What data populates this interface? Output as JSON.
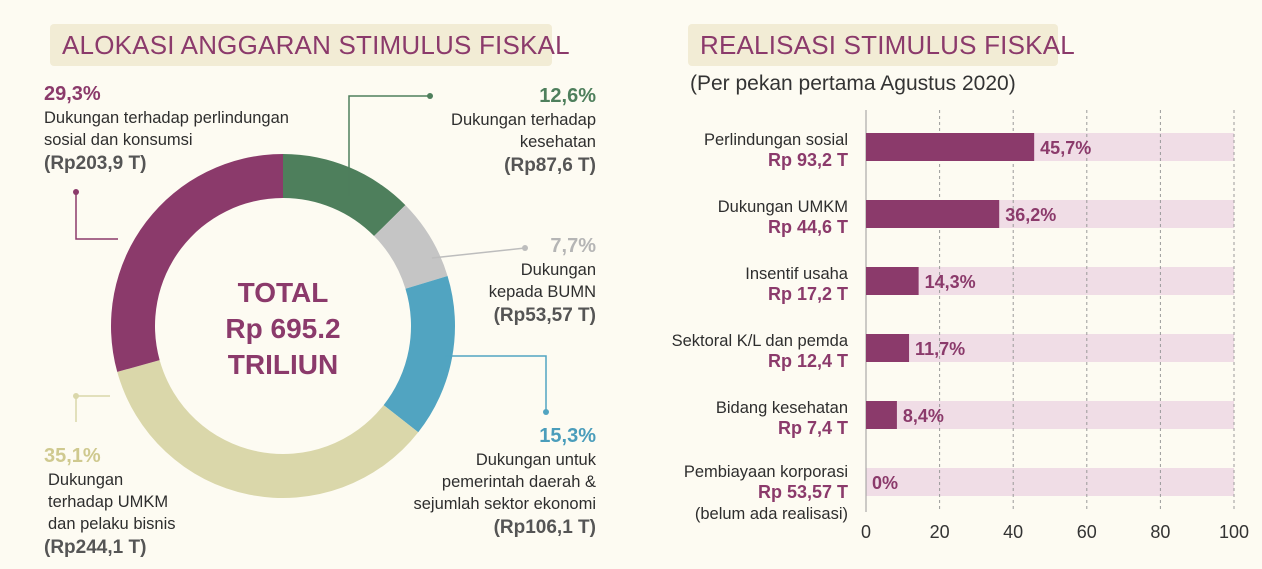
{
  "left_title": "ALOKASI ANGGARAN STIMULUS FISKAL",
  "right_title": "REALISASI STIMULUS FISKAL",
  "right_subtitle": "(Per pekan pertama Agustus 2020)",
  "center": {
    "line1": "TOTAL",
    "line2": "Rp 695.2",
    "line3": "TRILIUN"
  },
  "colors": {
    "accent": "#8b3a6b",
    "title_bg": "#f2ecd5",
    "bg": "#fdfbf2",
    "bar_bg": "#f0dde6"
  },
  "chart_data": [
    {
      "type": "pie",
      "title": "ALOKASI ANGGARAN STIMULUS FISKAL",
      "total_label": "TOTAL Rp 695.2 TRILIUN",
      "slices": [
        {
          "pct_label": "12,6%",
          "value": 12.6,
          "desc": [
            "Dukungan terhadap",
            "kesehatan"
          ],
          "amount": "(Rp87,6 T)",
          "color": "#4e7f5c"
        },
        {
          "pct_label": "7,7%",
          "value": 7.7,
          "desc": [
            "Dukungan",
            "kepada BUMN"
          ],
          "amount": "(Rp53,57 T)",
          "color": "#c5c5c5"
        },
        {
          "pct_label": "15,3%",
          "value": 15.3,
          "desc": [
            "Dukungan untuk",
            "pemerintah daerah &",
            "sejumlah sektor ekonomi"
          ],
          "amount": "(Rp106,1 T)",
          "color": "#51a4c1"
        },
        {
          "pct_label": "35,1%",
          "value": 35.1,
          "desc": [
            "Dukungan",
            "terhadap UMKM",
            "dan pelaku bisnis"
          ],
          "amount": "(Rp244,1 T)",
          "color": "#dad7aa"
        },
        {
          "pct_label": "29,3%",
          "value": 29.3,
          "desc": [
            "Dukungan terhadap perlindungan",
            "sosial dan konsumsi"
          ],
          "amount": "(Rp203,9 T)",
          "color": "#8b3a6b"
        }
      ]
    },
    {
      "type": "bar",
      "title": "REALISASI STIMULUS FISKAL",
      "subtitle": "(Per pekan pertama Agustus 2020)",
      "orientation": "horizontal",
      "xlim": [
        0,
        100
      ],
      "ticks": [
        "0",
        "20",
        "40",
        "60",
        "80",
        "100"
      ],
      "grid": true,
      "categories": [
        {
          "label": "Perlindungan sosial",
          "amount": "Rp 93,2 T",
          "value": 45.7,
          "pct_label": "45,7%"
        },
        {
          "label": "Dukungan UMKM",
          "amount": "Rp 44,6 T",
          "value": 36.2,
          "pct_label": "36,2%"
        },
        {
          "label": "Insentif usaha",
          "amount": "Rp 17,2 T",
          "value": 14.3,
          "pct_label": "14,3%"
        },
        {
          "label": "Sektoral K/L dan pemda",
          "amount": "Rp 12,4 T",
          "value": 11.7,
          "pct_label": "11,7%"
        },
        {
          "label": "Bidang kesehatan",
          "amount": "Rp 7,4 T",
          "value": 8.4,
          "pct_label": "8,4%"
        },
        {
          "label": "Pembiayaan korporasi",
          "amount": "Rp 53,57 T",
          "note": "(belum ada realisasi)",
          "value": 0,
          "pct_label": "0%"
        }
      ]
    }
  ]
}
